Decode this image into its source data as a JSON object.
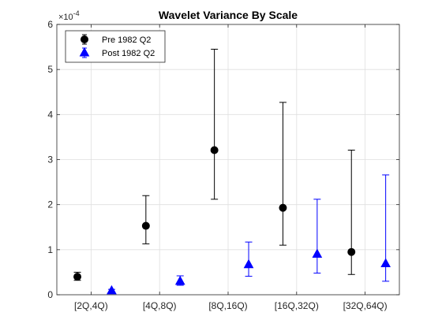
{
  "chart_data": {
    "type": "scatter",
    "title": "Wavelet Variance By Scale",
    "xlabel": "",
    "ylabel": "",
    "y_exponent_label": "×10",
    "y_exponent_power": "-4",
    "x_tick_labels": [
      "[2Q,4Q)",
      "[4Q,8Q)",
      "[8Q,16Q)",
      "[16Q,32Q)",
      "[32Q,64Q)"
    ],
    "y_tick_labels": [
      "0",
      "1",
      "2",
      "3",
      "4",
      "5",
      "6"
    ],
    "ylim": [
      0,
      6
    ],
    "grid": true,
    "legend_location": "top-left",
    "series": [
      {
        "name": "Pre 1982 Q2",
        "color": "#000000",
        "marker": "circle",
        "x": [
          0.8,
          1.8,
          2.8,
          3.8,
          4.8
        ],
        "y": [
          0.4,
          1.53,
          3.21,
          1.93,
          0.95
        ],
        "lower": [
          0.32,
          1.13,
          2.12,
          1.1,
          0.45
        ],
        "upper": [
          0.5,
          2.2,
          5.45,
          4.27,
          3.21
        ]
      },
      {
        "name": "Post 1982 Q2",
        "color": "#0000ff",
        "marker": "triangle",
        "x": [
          1.3,
          2.3,
          3.3,
          4.3,
          5.3
        ],
        "y": [
          0.09,
          0.3,
          0.67,
          0.9,
          0.69
        ],
        "lower": [
          0.06,
          0.21,
          0.41,
          0.48,
          0.3
        ],
        "upper": [
          0.12,
          0.42,
          1.17,
          2.12,
          2.66
        ]
      }
    ]
  }
}
